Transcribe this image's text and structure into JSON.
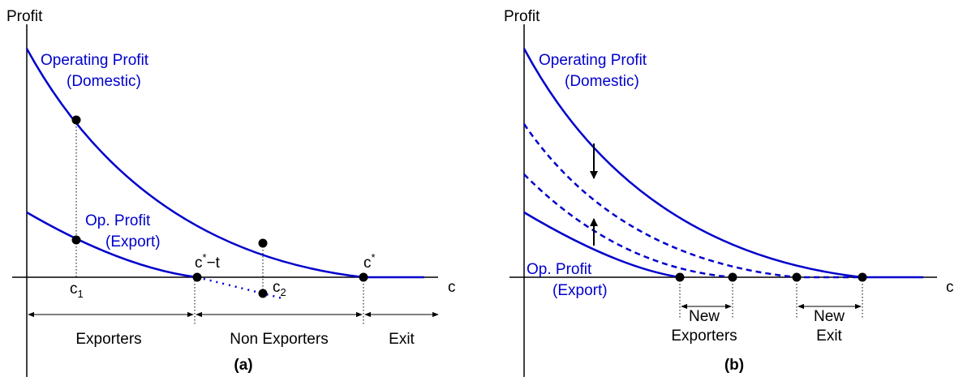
{
  "panel_a": {
    "y_label": "Profit",
    "x_label": "c",
    "domestic_label": [
      "Operating Profit",
      "(Domestic)"
    ],
    "export_label": [
      "Op. Profit",
      "(Export)"
    ],
    "c_star_minus_t": {
      "base": "c",
      "sup": "*",
      "rest": "−t"
    },
    "c_star": {
      "base": "c",
      "sup": "*"
    },
    "c1": {
      "base": "c",
      "sub": "1"
    },
    "c2": {
      "base": "c",
      "sub": "2"
    },
    "regions": [
      "Exporters",
      "Non Exporters",
      "Exit"
    ],
    "caption": "(a)"
  },
  "panel_b": {
    "y_label": "Profit",
    "x_label": "c",
    "domestic_label": [
      "Operating Profit",
      "(Domestic)"
    ],
    "export_label": [
      "Op. Profit",
      "(Export)"
    ],
    "new_exporters": [
      "New",
      "Exporters"
    ],
    "new_exit": [
      "New",
      "Exit"
    ],
    "caption": "(b)"
  }
}
